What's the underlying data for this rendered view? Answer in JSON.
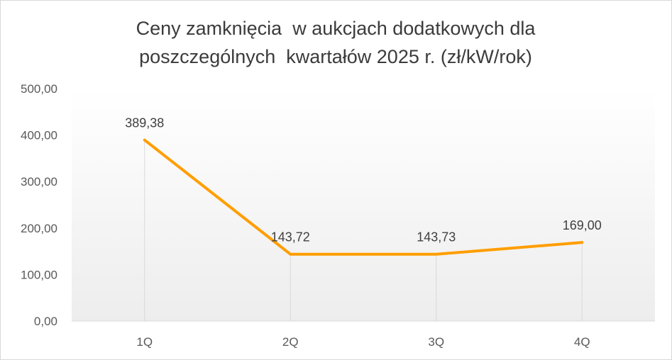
{
  "chart_data": {
    "type": "line",
    "title_lines": [
      "Ceny zamknięcia  w aukcjach dodatkowych dla",
      "poszczególnych  kwartałów 2025 r. (zł/kW/rok)"
    ],
    "categories": [
      "1Q",
      "2Q",
      "3Q",
      "4Q"
    ],
    "values": [
      389.38,
      143.72,
      143.73,
      169.0
    ],
    "data_labels": [
      "389,38",
      "143,72",
      "143,73",
      "169,00"
    ],
    "y_ticks": [
      {
        "value": 0,
        "label": "0,00"
      },
      {
        "value": 100,
        "label": "100,00"
      },
      {
        "value": 200,
        "label": "200,00"
      },
      {
        "value": 300,
        "label": "300,00"
      },
      {
        "value": 400,
        "label": "400,00"
      },
      {
        "value": 500,
        "label": "500,00"
      }
    ],
    "ylim": [
      0,
      500
    ],
    "grid": false,
    "drop_lines": true,
    "legend": "none",
    "colors": {
      "line": "#FF9E00",
      "drop_line": "#d9d9d9",
      "axis": "#d9d9d9",
      "gradient_top": "#ffffff",
      "gradient_bottom": "#ededed"
    }
  }
}
